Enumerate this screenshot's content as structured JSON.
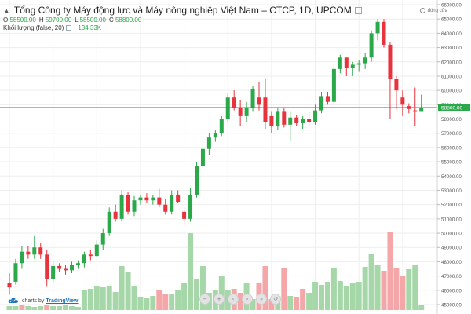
{
  "header": {
    "title": "Tổng Công ty Máy động lực và Máy nông nghiệp Việt Nam – CTCP, 1D, UPCOM",
    "ohlc": [
      {
        "label": "O",
        "value": "58500.00"
      },
      {
        "label": "H",
        "value": "59700.00"
      },
      {
        "label": "L",
        "value": "58500.00"
      },
      {
        "label": "C",
        "value": "58800.00"
      }
    ],
    "volume_label": "Khối lượng (false, 20)",
    "volume_value": "134.33K",
    "status": "đóng cửa"
  },
  "branding": {
    "prefix": "charts by",
    "name": "TradingView"
  },
  "nav_buttons": [
    {
      "name": "zoom-out-icon",
      "glyph": "−"
    },
    {
      "name": "zoom-in-icon",
      "glyph": "+"
    },
    {
      "name": "scroll-left-icon",
      "glyph": "‹"
    },
    {
      "name": "scroll-right-icon",
      "glyph": "›"
    },
    {
      "name": "scroll-end-icon",
      "glyph": "»"
    },
    {
      "name": "reset-icon",
      "glyph": "↺"
    }
  ],
  "colors": {
    "up": "#2ba84a",
    "down": "#e8323c",
    "vol_up": "#a6d7a8",
    "vol_down": "#f4a6a9",
    "price_line": "#e8323c",
    "grid": "#eeeeee"
  },
  "chart_data": {
    "type": "candlestick",
    "title": "Tổng Công ty Máy động lực và Máy nông nghiệp Việt Nam – CTCP, 1D, UPCOM",
    "interval": "1D",
    "exchange": "UPCOM",
    "ylim": [
      45000,
      66000
    ],
    "y_ticks": [
      "45000.00",
      "46000.00",
      "47000.00",
      "48000.00",
      "49000.00",
      "50000.00",
      "51000.00",
      "52000.00",
      "53000.00",
      "54000.00",
      "55000.00",
      "56000.00",
      "57000.00",
      "58000.00",
      "59000.00",
      "60000.00",
      "61000.00",
      "62000.00",
      "63000.00",
      "64000.00",
      "65000.00",
      "66000.00"
    ],
    "last_price": 58800,
    "last_price_label": "58800.00",
    "grid": true,
    "candles": [
      {
        "o": 46500,
        "h": 47200,
        "l": 45700,
        "c": 46200
      },
      {
        "o": 46600,
        "h": 48200,
        "l": 46400,
        "c": 47900
      },
      {
        "o": 47900,
        "h": 49100,
        "l": 47500,
        "c": 48700
      },
      {
        "o": 48700,
        "h": 49100,
        "l": 48200,
        "c": 48500
      },
      {
        "o": 48500,
        "h": 49800,
        "l": 48200,
        "c": 49000
      },
      {
        "o": 49000,
        "h": 49300,
        "l": 48200,
        "c": 48500
      },
      {
        "o": 48500,
        "h": 48800,
        "l": 46300,
        "c": 46800
      },
      {
        "o": 46800,
        "h": 48000,
        "l": 46500,
        "c": 47700
      },
      {
        "o": 47700,
        "h": 47900,
        "l": 47300,
        "c": 47500
      },
      {
        "o": 47500,
        "h": 47800,
        "l": 47100,
        "c": 47400
      },
      {
        "o": 47400,
        "h": 48000,
        "l": 47200,
        "c": 47800
      },
      {
        "o": 47800,
        "h": 48100,
        "l": 47500,
        "c": 47900
      },
      {
        "o": 47900,
        "h": 48700,
        "l": 47600,
        "c": 48500
      },
      {
        "o": 48500,
        "h": 48800,
        "l": 48100,
        "c": 48400
      },
      {
        "o": 48400,
        "h": 49500,
        "l": 48300,
        "c": 49200
      },
      {
        "o": 49200,
        "h": 50300,
        "l": 48800,
        "c": 50000
      },
      {
        "o": 50000,
        "h": 51800,
        "l": 49800,
        "c": 51500
      },
      {
        "o": 51500,
        "h": 52000,
        "l": 50800,
        "c": 51000
      },
      {
        "o": 51000,
        "h": 53000,
        "l": 50800,
        "c": 52700
      },
      {
        "o": 52700,
        "h": 52900,
        "l": 51300,
        "c": 51500
      },
      {
        "o": 51500,
        "h": 52600,
        "l": 51200,
        "c": 52300
      },
      {
        "o": 52300,
        "h": 52700,
        "l": 52000,
        "c": 52500
      },
      {
        "o": 52500,
        "h": 52800,
        "l": 52100,
        "c": 52300
      },
      {
        "o": 52300,
        "h": 52700,
        "l": 52000,
        "c": 52500
      },
      {
        "o": 52500,
        "h": 53100,
        "l": 51800,
        "c": 52000
      },
      {
        "o": 52000,
        "h": 52400,
        "l": 51300,
        "c": 51500
      },
      {
        "o": 51500,
        "h": 53000,
        "l": 51300,
        "c": 52700
      },
      {
        "o": 52700,
        "h": 53000,
        "l": 52100,
        "c": 52200
      },
      {
        "o": 51500,
        "h": 51800,
        "l": 50600,
        "c": 51000
      },
      {
        "o": 51000,
        "h": 53200,
        "l": 50800,
        "c": 52700
      },
      {
        "o": 52700,
        "h": 55000,
        "l": 52500,
        "c": 54700
      },
      {
        "o": 54700,
        "h": 56200,
        "l": 54500,
        "c": 55900
      },
      {
        "o": 55900,
        "h": 57000,
        "l": 55500,
        "c": 56700
      },
      {
        "o": 56700,
        "h": 57200,
        "l": 56400,
        "c": 57000
      },
      {
        "o": 57000,
        "h": 58200,
        "l": 56800,
        "c": 58000
      },
      {
        "o": 58000,
        "h": 59800,
        "l": 57800,
        "c": 59500
      },
      {
        "o": 59500,
        "h": 60000,
        "l": 58600,
        "c": 58800
      },
      {
        "o": 58800,
        "h": 59300,
        "l": 57500,
        "c": 58200
      },
      {
        "o": 58200,
        "h": 59200,
        "l": 57800,
        "c": 58800
      },
      {
        "o": 58800,
        "h": 60300,
        "l": 58500,
        "c": 60100
      },
      {
        "o": 59500,
        "h": 60600,
        "l": 58600,
        "c": 59000
      },
      {
        "o": 59500,
        "h": 60800,
        "l": 57300,
        "c": 57800
      },
      {
        "o": 58200,
        "h": 58500,
        "l": 57000,
        "c": 57500
      },
      {
        "o": 57500,
        "h": 58800,
        "l": 57200,
        "c": 58500
      },
      {
        "o": 58500,
        "h": 58800,
        "l": 57400,
        "c": 57600
      },
      {
        "o": 57600,
        "h": 58500,
        "l": 56500,
        "c": 58100
      },
      {
        "o": 58100,
        "h": 58300,
        "l": 57500,
        "c": 57700
      },
      {
        "o": 57700,
        "h": 58200,
        "l": 57300,
        "c": 58000
      },
      {
        "o": 58000,
        "h": 58500,
        "l": 57500,
        "c": 57800
      },
      {
        "o": 57800,
        "h": 59000,
        "l": 57600,
        "c": 58600
      },
      {
        "o": 58600,
        "h": 59900,
        "l": 58400,
        "c": 59600
      },
      {
        "o": 59600,
        "h": 59900,
        "l": 59000,
        "c": 59200
      },
      {
        "o": 59200,
        "h": 61800,
        "l": 59000,
        "c": 61500
      },
      {
        "o": 61500,
        "h": 62500,
        "l": 61200,
        "c": 62300
      },
      {
        "o": 62300,
        "h": 62300,
        "l": 61000,
        "c": 61600
      },
      {
        "o": 61600,
        "h": 62000,
        "l": 61000,
        "c": 61800
      },
      {
        "o": 61800,
        "h": 62100,
        "l": 61300,
        "c": 61900
      },
      {
        "o": 61900,
        "h": 62600,
        "l": 61500,
        "c": 62300
      },
      {
        "o": 62300,
        "h": 64200,
        "l": 62000,
        "c": 64000
      },
      {
        "o": 64000,
        "h": 65000,
        "l": 63500,
        "c": 64800
      },
      {
        "o": 64800,
        "h": 65000,
        "l": 63000,
        "c": 63200
      },
      {
        "o": 63200,
        "h": 63400,
        "l": 58000,
        "c": 60800
      },
      {
        "o": 60800,
        "h": 61000,
        "l": 58700,
        "c": 60000
      },
      {
        "o": 59500,
        "h": 60000,
        "l": 58200,
        "c": 59000
      },
      {
        "o": 58900,
        "h": 59100,
        "l": 58400,
        "c": 58700
      },
      {
        "o": 58600,
        "h": 60200,
        "l": 57500,
        "c": 58500
      },
      {
        "o": 58500,
        "h": 59700,
        "l": 58500,
        "c": 58800
      }
    ],
    "volume": [
      {
        "v": 0.05,
        "up": true
      },
      {
        "v": 0.05,
        "up": true
      },
      {
        "v": 0.06,
        "up": false
      },
      {
        "v": 0.05,
        "up": true
      },
      {
        "v": 0.04,
        "up": true
      },
      {
        "v": 0.05,
        "up": true
      },
      {
        "v": 0.06,
        "up": false
      },
      {
        "v": 0.05,
        "up": true
      },
      {
        "v": 0.05,
        "up": true
      },
      {
        "v": 0.06,
        "up": true
      },
      {
        "v": 0.05,
        "up": true
      },
      {
        "v": 0.04,
        "up": true
      },
      {
        "v": 0.26,
        "up": true
      },
      {
        "v": 0.27,
        "up": true
      },
      {
        "v": 0.31,
        "up": true
      },
      {
        "v": 0.29,
        "up": true
      },
      {
        "v": 0.31,
        "up": true
      },
      {
        "v": 0.23,
        "up": true
      },
      {
        "v": 0.56,
        "up": true
      },
      {
        "v": 0.48,
        "up": true
      },
      {
        "v": 0.31,
        "up": true
      },
      {
        "v": 0.17,
        "up": true
      },
      {
        "v": 0.16,
        "up": true
      },
      {
        "v": 0.18,
        "up": true
      },
      {
        "v": 0.25,
        "up": false
      },
      {
        "v": 0.2,
        "up": false
      },
      {
        "v": 0.2,
        "up": true
      },
      {
        "v": 0.26,
        "up": true
      },
      {
        "v": 0.35,
        "up": true
      },
      {
        "v": 0.98,
        "up": true
      },
      {
        "v": 0.39,
        "up": true
      },
      {
        "v": 0.56,
        "up": true
      },
      {
        "v": 0.22,
        "up": true
      },
      {
        "v": 0.25,
        "up": true
      },
      {
        "v": 0.43,
        "up": true
      },
      {
        "v": 0.25,
        "up": true
      },
      {
        "v": 0.27,
        "up": false
      },
      {
        "v": 0.22,
        "up": false
      },
      {
        "v": 0.35,
        "up": true
      },
      {
        "v": 0.14,
        "up": true
      },
      {
        "v": 0.35,
        "up": false
      },
      {
        "v": 0.56,
        "up": false
      },
      {
        "v": 0.14,
        "up": false
      },
      {
        "v": 0.18,
        "up": true
      },
      {
        "v": 0.53,
        "up": false
      },
      {
        "v": 0.18,
        "up": true
      },
      {
        "v": 0.17,
        "up": false
      },
      {
        "v": 0.27,
        "up": false
      },
      {
        "v": 0.22,
        "up": true
      },
      {
        "v": 0.36,
        "up": true
      },
      {
        "v": 0.32,
        "up": true
      },
      {
        "v": 0.36,
        "up": true
      },
      {
        "v": 0.53,
        "up": true
      },
      {
        "v": 0.37,
        "up": true
      },
      {
        "v": 0.31,
        "up": true
      },
      {
        "v": 0.35,
        "up": true
      },
      {
        "v": 0.36,
        "up": true
      },
      {
        "v": 0.55,
        "up": true
      },
      {
        "v": 0.72,
        "up": true
      },
      {
        "v": 0.58,
        "up": true
      },
      {
        "v": 0.5,
        "up": false
      },
      {
        "v": 1.0,
        "up": false
      },
      {
        "v": 0.54,
        "up": false
      },
      {
        "v": 0.43,
        "up": false
      },
      {
        "v": 0.52,
        "up": true
      },
      {
        "v": 0.57,
        "up": true
      },
      {
        "v": 0.07,
        "up": true
      }
    ]
  }
}
